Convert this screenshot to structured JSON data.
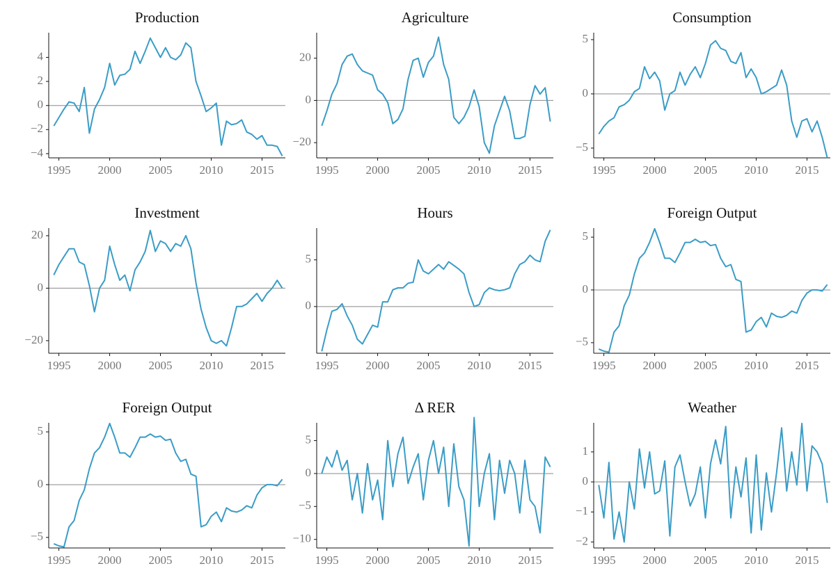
{
  "chart_data": [
    {
      "type": "line",
      "title": "Production",
      "color": "#3a9cc6",
      "zero_line": true,
      "x": [
        1994.5,
        1995,
        1995.5,
        1996,
        1996.5,
        1997,
        1997.5,
        1998,
        1998.5,
        1999,
        1999.5,
        2000,
        2000.5,
        2001,
        2001.5,
        2002,
        2002.5,
        2003,
        2003.5,
        2004,
        2004.5,
        2005,
        2005.5,
        2006,
        2006.5,
        2007,
        2007.5,
        2008,
        2008.5,
        2009,
        2009.5,
        2010,
        2010.5,
        2011,
        2011.5,
        2012,
        2012.5,
        2013,
        2013.5,
        2014,
        2014.5,
        2015,
        2015.5,
        2016,
        2016.5,
        2017
      ],
      "values": [
        -1.7,
        -1.0,
        -0.3,
        0.3,
        0.2,
        -0.5,
        1.5,
        -2.3,
        -0.3,
        0.5,
        1.5,
        3.5,
        1.7,
        2.5,
        2.6,
        3.0,
        4.5,
        3.5,
        4.5,
        5.6,
        4.8,
        4.0,
        4.8,
        4.0,
        3.8,
        4.2,
        5.2,
        4.8,
        2.0,
        0.8,
        -0.5,
        -0.2,
        0.2,
        -3.3,
        -1.3,
        -1.6,
        -1.5,
        -1.2,
        -2.2,
        -2.4,
        -2.8,
        -2.5,
        -3.3,
        -3.3,
        -3.4,
        -4.2
      ],
      "xlim": [
        1994,
        2017.3
      ],
      "xticks": [
        1995,
        2000,
        2005,
        2010,
        2015
      ],
      "ylim": [
        -4.35,
        6.05
      ],
      "yticks": [
        {
          "value": -4,
          "label": "−4"
        },
        {
          "value": -2,
          "label": "−2"
        },
        0,
        2,
        4
      ]
    },
    {
      "type": "line",
      "title": "Agriculture",
      "color": "#3a9cc6",
      "zero_line": true,
      "x": [
        1994.5,
        1995,
        1995.5,
        1996,
        1996.5,
        1997,
        1997.5,
        1998,
        1998.5,
        1999,
        1999.5,
        2000,
        2000.5,
        2001,
        2001.5,
        2002,
        2002.5,
        2003,
        2003.5,
        2004,
        2004.5,
        2005,
        2005.5,
        2006,
        2006.5,
        2007,
        2007.5,
        2008,
        2008.5,
        2009,
        2009.5,
        2010,
        2010.5,
        2011,
        2011.5,
        2012,
        2012.5,
        2013,
        2013.5,
        2014,
        2014.5,
        2015,
        2015.5,
        2016,
        2016.5,
        2017
      ],
      "values": [
        -12,
        -5,
        3,
        8,
        17,
        21,
        22,
        17,
        14,
        13,
        12,
        5,
        3,
        -1,
        -11,
        -9,
        -4,
        10,
        19,
        20,
        11,
        18,
        21,
        30,
        17,
        10,
        -8,
        -11,
        -8,
        -3,
        5,
        -3,
        -20,
        -25,
        -12,
        -5,
        2,
        -5,
        -18,
        -18,
        -17,
        -2,
        7,
        3,
        6,
        -10
      ],
      "xlim": [
        1994,
        2017.3
      ],
      "xticks": [
        1995,
        2000,
        2005,
        2010,
        2015
      ],
      "ylim": [
        -27.2,
        32.1
      ],
      "yticks": [
        {
          "value": -20,
          "label": "−20"
        },
        0,
        20
      ]
    },
    {
      "type": "line",
      "title": "Consumption",
      "color": "#3a9cc6",
      "zero_line": true,
      "x": [
        1994.5,
        1995,
        1995.5,
        1996,
        1996.5,
        1997,
        1997.5,
        1998,
        1998.5,
        1999,
        1999.5,
        2000,
        2000.5,
        2001,
        2001.5,
        2002,
        2002.5,
        2003,
        2003.5,
        2004,
        2004.5,
        2005,
        2005.5,
        2006,
        2006.5,
        2007,
        2007.5,
        2008,
        2008.5,
        2009,
        2009.5,
        2010,
        2010.5,
        2011,
        2011.5,
        2012,
        2012.5,
        2013,
        2013.5,
        2014,
        2014.5,
        2015,
        2015.5,
        2016,
        2016.5,
        2017
      ],
      "values": [
        -3.7,
        -3.0,
        -2.5,
        -2.2,
        -1.2,
        -1.0,
        -0.6,
        0.2,
        0.5,
        2.5,
        1.4,
        2.0,
        1.2,
        -1.5,
        0.0,
        0.3,
        2.0,
        0.8,
        1.8,
        2.5,
        1.5,
        2.8,
        4.5,
        4.9,
        4.2,
        4.0,
        3.0,
        2.8,
        3.8,
        1.5,
        2.3,
        1.5,
        0.0,
        0.2,
        0.5,
        0.8,
        2.2,
        0.8,
        -2.5,
        -4.0,
        -2.5,
        -2.3,
        -3.5,
        -2.5,
        -4.0,
        -5.9
      ],
      "xlim": [
        1994,
        2017.3
      ],
      "xticks": [
        1995,
        2000,
        2005,
        2010,
        2015
      ],
      "ylim": [
        -5.9,
        5.64
      ],
      "yticks": [
        {
          "value": -5,
          "label": "−5"
        },
        0,
        5
      ]
    },
    {
      "type": "line",
      "title": "Investment",
      "color": "#3a9cc6",
      "zero_line": true,
      "x": [
        1994.5,
        1995,
        1995.5,
        1996,
        1996.5,
        1997,
        1997.5,
        1998,
        1998.5,
        1999,
        1999.5,
        2000,
        2000.5,
        2001,
        2001.5,
        2002,
        2002.5,
        2003,
        2003.5,
        2004,
        2004.5,
        2005,
        2005.5,
        2006,
        2006.5,
        2007,
        2007.5,
        2008,
        2008.5,
        2009,
        2009.5,
        2010,
        2010.5,
        2011,
        2011.5,
        2012,
        2012.5,
        2013,
        2013.5,
        2014,
        2014.5,
        2015,
        2015.5,
        2016,
        2016.5,
        2017
      ],
      "values": [
        5,
        9,
        12,
        15,
        15,
        10,
        9,
        1,
        -9,
        0,
        3,
        16,
        9,
        3,
        5,
        -1,
        7,
        10,
        14,
        22,
        14,
        18,
        17,
        14,
        17,
        16,
        20,
        15,
        2,
        -8,
        -15,
        -20,
        -21,
        -20,
        -22,
        -15,
        -7,
        -7,
        -6,
        -4,
        -2,
        -5,
        -2,
        0,
        3,
        0
      ],
      "xlim": [
        1994,
        2017.3
      ],
      "xticks": [
        1995,
        2000,
        2005,
        2010,
        2015
      ],
      "ylim": [
        -24.8,
        22.9
      ],
      "yticks": [
        {
          "value": -20,
          "label": "−20"
        },
        0,
        20
      ]
    },
    {
      "type": "line",
      "title": "Hours",
      "color": "#3a9cc6",
      "zero_line": true,
      "x": [
        1994.5,
        1995,
        1995.5,
        1996,
        1996.5,
        1997,
        1997.5,
        1998,
        1998.5,
        1999,
        1999.5,
        2000,
        2000.5,
        2001,
        2001.5,
        2002,
        2002.5,
        2003,
        2003.5,
        2004,
        2004.5,
        2005,
        2005.5,
        2006,
        2006.5,
        2007,
        2007.5,
        2008,
        2008.5,
        2009,
        2009.5,
        2010,
        2010.5,
        2011,
        2011.5,
        2012,
        2012.5,
        2013,
        2013.5,
        2014,
        2014.5,
        2015,
        2015.5,
        2016,
        2016.5,
        2017
      ],
      "values": [
        -4.8,
        -2.5,
        -0.5,
        -0.3,
        0.3,
        -1.0,
        -2.0,
        -3.5,
        -4.0,
        -3.0,
        -2.0,
        -2.2,
        0.5,
        0.5,
        1.8,
        2.0,
        2.0,
        2.5,
        2.6,
        5.0,
        3.8,
        3.5,
        4.0,
        4.5,
        4.0,
        4.8,
        4.4,
        4.0,
        3.5,
        1.5,
        0.0,
        0.2,
        1.5,
        2.0,
        1.8,
        1.7,
        1.8,
        2.0,
        3.5,
        4.5,
        4.8,
        5.5,
        5.0,
        4.8,
        7.0,
        8.2
      ],
      "xlim": [
        1994,
        2017.3
      ],
      "xticks": [
        1995,
        2000,
        2005,
        2010,
        2015
      ],
      "ylim": [
        -5,
        8.4
      ],
      "yticks": [
        0,
        5
      ]
    },
    {
      "type": "line",
      "title": "Foreign Output",
      "color": "#3a9cc6",
      "zero_line": true,
      "x": [
        1994.5,
        1995,
        1995.5,
        1996,
        1996.5,
        1997,
        1997.5,
        1998,
        1998.5,
        1999,
        1999.5,
        2000,
        2000.5,
        2001,
        2001.5,
        2002,
        2002.5,
        2003,
        2003.5,
        2004,
        2004.5,
        2005,
        2005.5,
        2006,
        2006.5,
        2007,
        2007.5,
        2008,
        2008.5,
        2009,
        2009.5,
        2010,
        2010.5,
        2011,
        2011.5,
        2012,
        2012.5,
        2013,
        2013.5,
        2014,
        2014.5,
        2015,
        2015.5,
        2016,
        2016.5,
        2017
      ],
      "values": [
        -5.6,
        -5.8,
        -5.9,
        -4.0,
        -3.4,
        -1.5,
        -0.5,
        1.5,
        3.0,
        3.5,
        4.5,
        5.8,
        4.5,
        3.0,
        3.0,
        2.6,
        3.5,
        4.5,
        4.5,
        4.8,
        4.5,
        4.6,
        4.2,
        4.3,
        3.0,
        2.2,
        2.4,
        1.0,
        0.8,
        -4.0,
        -3.8,
        -3.0,
        -2.6,
        -3.5,
        -2.2,
        -2.5,
        -2.6,
        -2.4,
        -2.0,
        -2.2,
        -1.0,
        -0.3,
        0.0,
        0.0,
        -0.1,
        0.5
      ],
      "xlim": [
        1994,
        2017.3
      ],
      "xticks": [
        1995,
        2000,
        2005,
        2010,
        2015
      ],
      "ylim": [
        -6.0,
        5.86
      ],
      "yticks": [
        {
          "value": -5,
          "label": "−5"
        },
        0,
        5
      ]
    },
    {
      "type": "line",
      "title": "Foreign Output",
      "color": "#3a9cc6",
      "zero_line": true,
      "x": [
        1994.5,
        1995,
        1995.5,
        1996,
        1996.5,
        1997,
        1997.5,
        1998,
        1998.5,
        1999,
        1999.5,
        2000,
        2000.5,
        2001,
        2001.5,
        2002,
        2002.5,
        2003,
        2003.5,
        2004,
        2004.5,
        2005,
        2005.5,
        2006,
        2006.5,
        2007,
        2007.5,
        2008,
        2008.5,
        2009,
        2009.5,
        2010,
        2010.5,
        2011,
        2011.5,
        2012,
        2012.5,
        2013,
        2013.5,
        2014,
        2014.5,
        2015,
        2015.5,
        2016,
        2016.5,
        2017
      ],
      "values": [
        -5.6,
        -5.8,
        -5.9,
        -4.0,
        -3.4,
        -1.5,
        -0.5,
        1.5,
        3.0,
        3.5,
        4.5,
        5.8,
        4.5,
        3.0,
        3.0,
        2.6,
        3.5,
        4.5,
        4.5,
        4.8,
        4.5,
        4.6,
        4.2,
        4.3,
        3.0,
        2.2,
        2.4,
        1.0,
        0.8,
        -4.0,
        -3.8,
        -3.0,
        -2.6,
        -3.5,
        -2.2,
        -2.5,
        -2.6,
        -2.4,
        -2.0,
        -2.2,
        -1.0,
        -0.3,
        0.0,
        0.0,
        -0.1,
        0.5
      ],
      "xlim": [
        1994,
        2017.3
      ],
      "xticks": [
        1995,
        2000,
        2005,
        2010,
        2015
      ],
      "ylim": [
        -6.0,
        5.86
      ],
      "yticks": [
        {
          "value": -5,
          "label": "−5"
        },
        0,
        5
      ]
    },
    {
      "type": "line",
      "title": "Δ RER",
      "color": "#3a9cc6",
      "zero_line": true,
      "x": [
        1994.5,
        1995,
        1995.5,
        1996,
        1996.5,
        1997,
        1997.5,
        1998,
        1998.5,
        1999,
        1999.5,
        2000,
        2000.5,
        2001,
        2001.5,
        2002,
        2002.5,
        2003,
        2003.5,
        2004,
        2004.5,
        2005,
        2005.5,
        2006,
        2006.5,
        2007,
        2007.5,
        2008,
        2008.5,
        2009,
        2009.5,
        2010,
        2010.5,
        2011,
        2011.5,
        2012,
        2012.5,
        2013,
        2013.5,
        2014,
        2014.5,
        2015,
        2015.5,
        2016,
        2016.5,
        2017
      ],
      "values": [
        0,
        2.5,
        1,
        3.5,
        0.5,
        2,
        -4,
        0,
        -6,
        1.5,
        -4,
        -1,
        -7,
        5,
        -2,
        3,
        5.5,
        -1.5,
        1,
        3,
        -4,
        2,
        5,
        0,
        4,
        -5,
        4.5,
        -2,
        -4,
        -11,
        8.5,
        -5,
        0,
        3,
        -7,
        2,
        -3,
        2,
        0,
        -6,
        2,
        -4,
        -5,
        -9,
        2.5,
        1
      ],
      "xlim": [
        1994,
        2017.3
      ],
      "xticks": [
        1995,
        2000,
        2005,
        2010,
        2015
      ],
      "ylim": [
        -11.3,
        7.7
      ],
      "yticks": [
        {
          "value": -10,
          "label": "−10"
        },
        {
          "value": -5,
          "label": "−5"
        },
        0,
        5
      ]
    },
    {
      "type": "line",
      "title": "Weather",
      "color": "#3a9cc6",
      "zero_line": true,
      "x": [
        1994.5,
        1995,
        1995.5,
        1996,
        1996.5,
        1997,
        1997.5,
        1998,
        1998.5,
        1999,
        1999.5,
        2000,
        2000.5,
        2001,
        2001.5,
        2002,
        2002.5,
        2003,
        2003.5,
        2004,
        2004.5,
        2005,
        2005.5,
        2006,
        2006.5,
        2007,
        2007.5,
        2008,
        2008.5,
        2009,
        2009.5,
        2010,
        2010.5,
        2011,
        2011.5,
        2012,
        2012.5,
        2013,
        2013.5,
        2014,
        2014.5,
        2015,
        2015.5,
        2016,
        2016.5,
        2017
      ],
      "values": [
        -0.1,
        -1.2,
        0.65,
        -1.9,
        -1.0,
        -2.0,
        0.0,
        -0.9,
        1.1,
        -0.2,
        1.0,
        -0.4,
        -0.3,
        0.7,
        -1.8,
        0.5,
        0.9,
        0.0,
        -0.8,
        -0.4,
        0.5,
        -1.2,
        0.6,
        1.4,
        0.6,
        1.85,
        -1.2,
        0.5,
        -0.5,
        0.8,
        -1.7,
        0.9,
        -1.6,
        0.3,
        -1.0,
        0.3,
        1.8,
        -0.3,
        1.0,
        -0.1,
        1.95,
        -0.3,
        1.2,
        1.0,
        0.6,
        -0.7
      ],
      "xlim": [
        1994,
        2017.3
      ],
      "xticks": [
        1995,
        2000,
        2005,
        2010,
        2015
      ],
      "ylim": [
        -2.2,
        1.97
      ],
      "yticks": [
        {
          "value": -2,
          "label": "−2"
        },
        {
          "value": -1,
          "label": "−1"
        },
        0,
        1
      ]
    }
  ]
}
